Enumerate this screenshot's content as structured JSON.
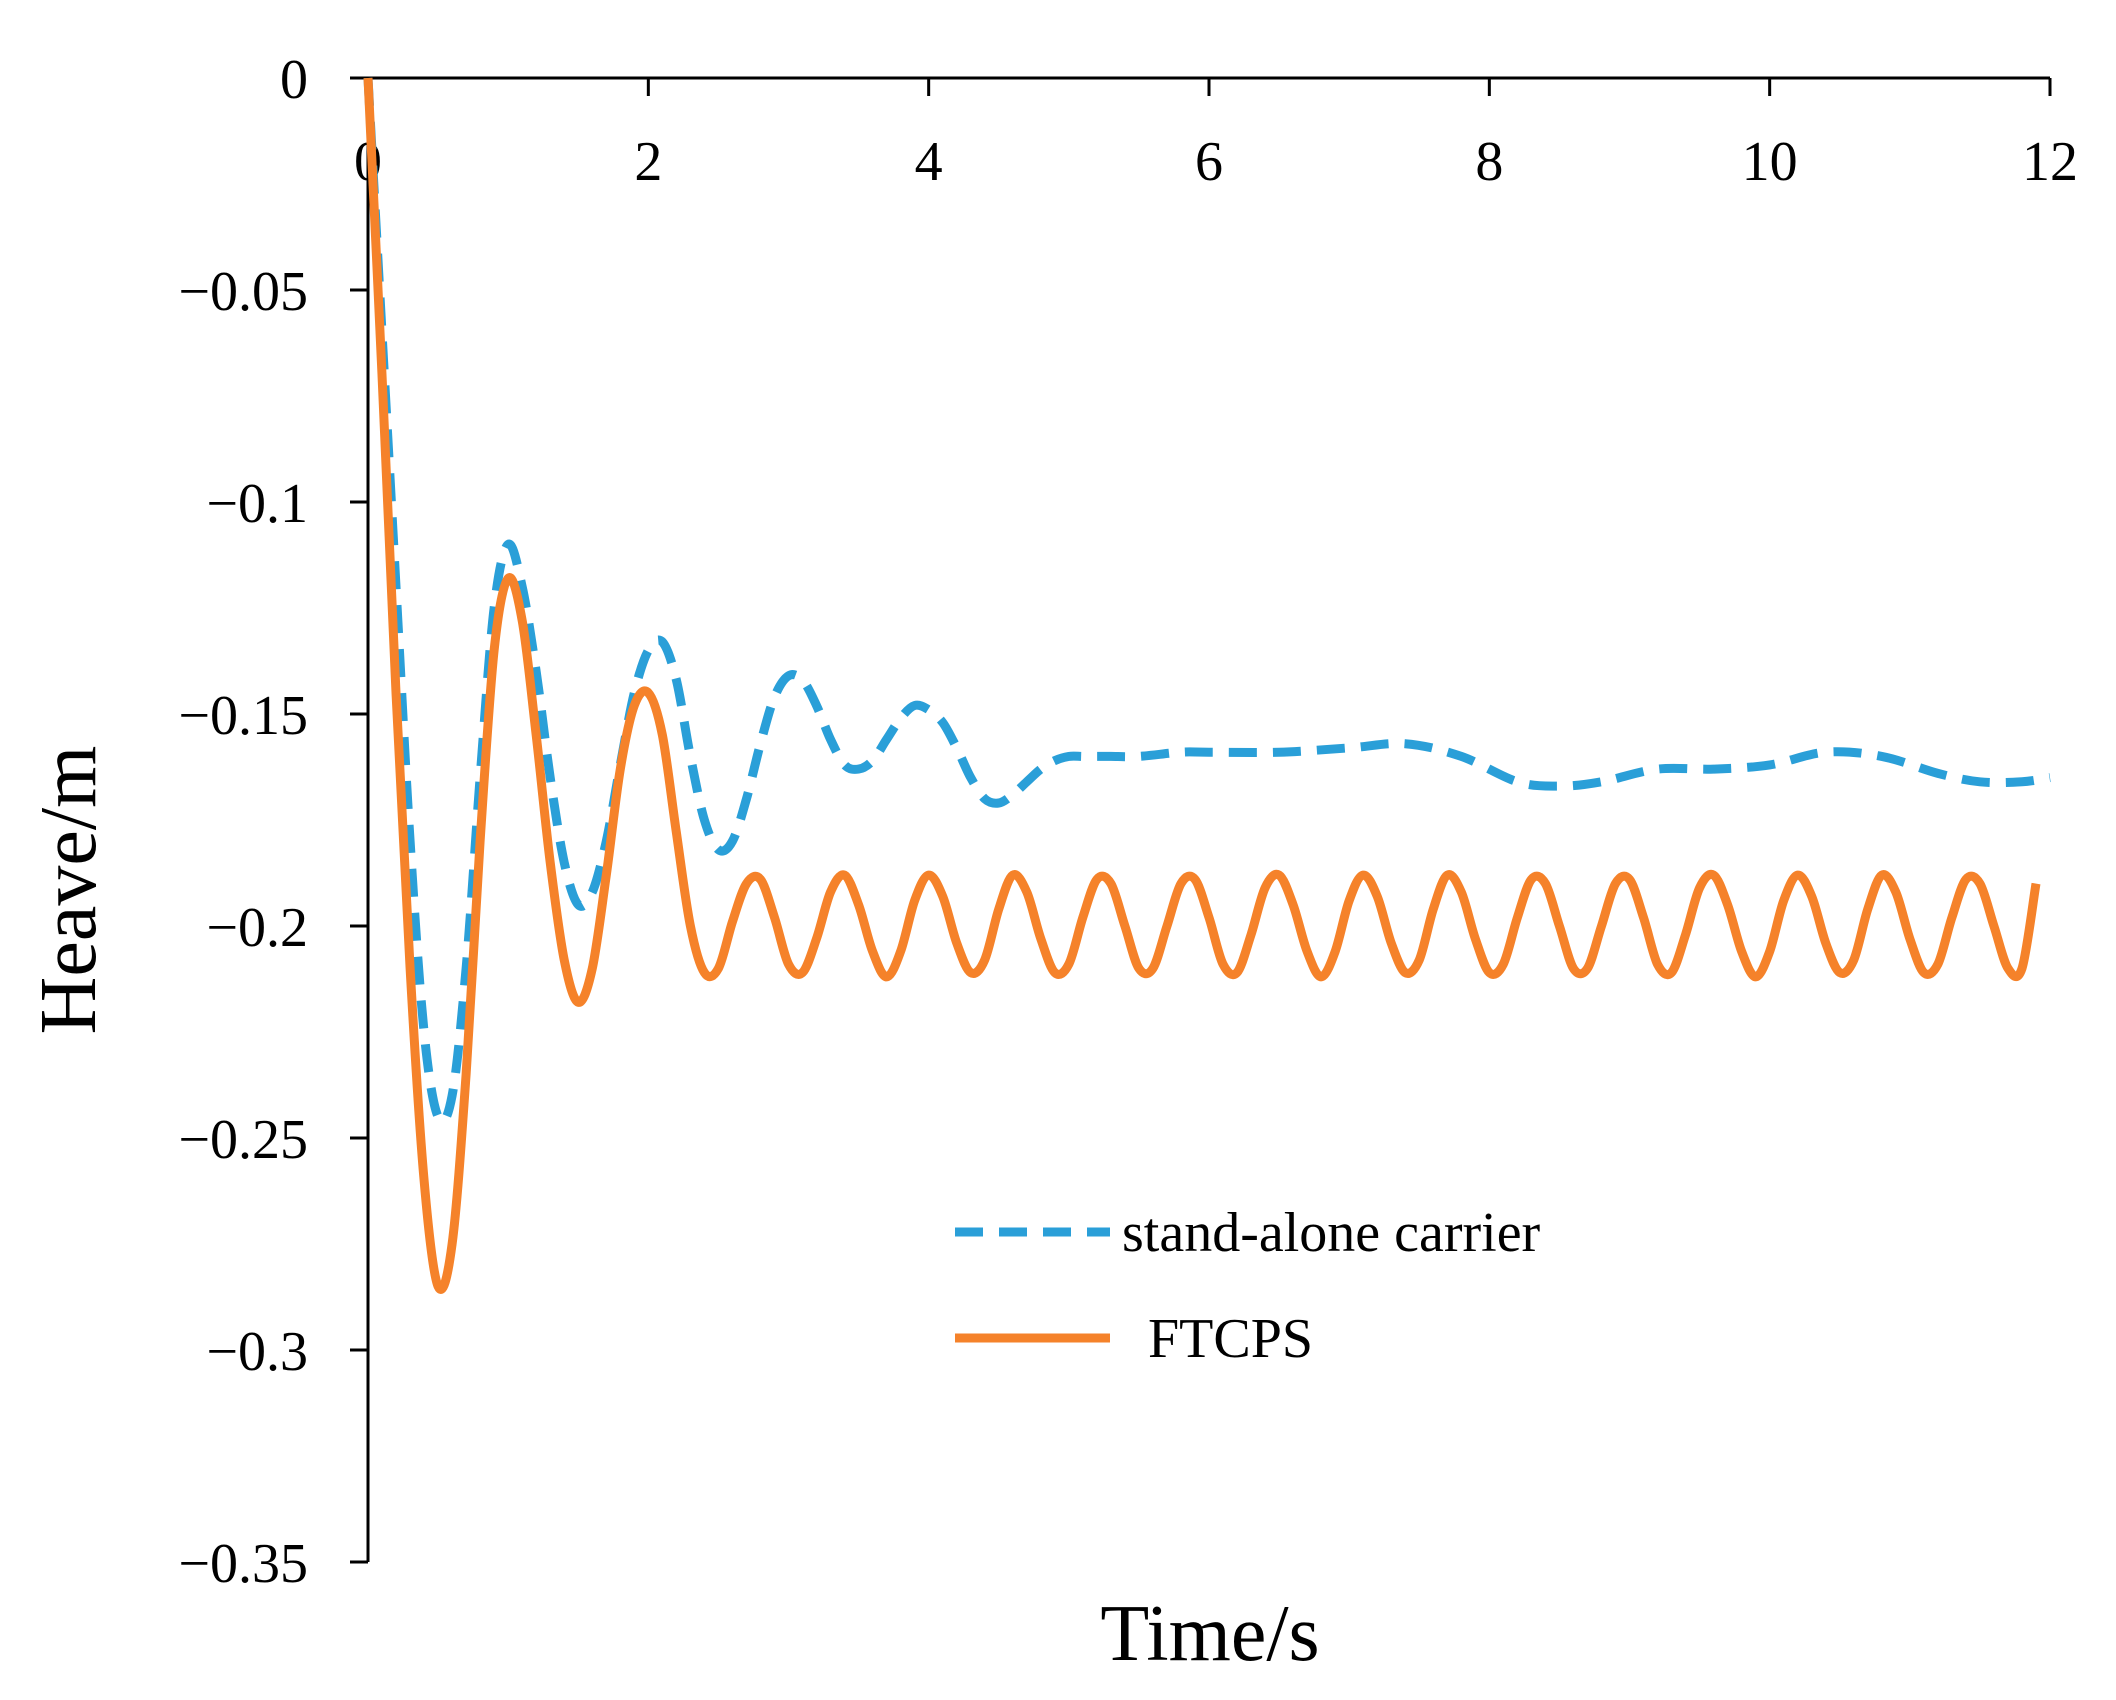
{
  "chart_data": {
    "type": "line",
    "title": "",
    "xlabel": "Time/s",
    "ylabel": "Heave/m",
    "xlim": [
      0,
      12
    ],
    "ylim": [
      -0.35,
      0
    ],
    "x_ticks": [
      0,
      2,
      4,
      6,
      8,
      10,
      12
    ],
    "x_tick_labels": [
      "0",
      "2",
      "4",
      "6",
      "8",
      "10",
      "12"
    ],
    "y_ticks": [
      0,
      -0.05,
      -0.1,
      -0.15,
      -0.2,
      -0.25,
      -0.3,
      -0.35
    ],
    "y_tick_labels": [
      "0",
      "−0.05",
      "−0.1",
      "−0.15",
      "−0.2",
      "−0.25",
      "−0.3",
      "−0.35"
    ],
    "x_axis_position": "top",
    "grid": false,
    "legend": {
      "position": "center-right"
    },
    "series": [
      {
        "name": "stand-alone carrier",
        "color": "#2a9fd8",
        "style": "dashed",
        "x": [
          0,
          0.1,
          0.2,
          0.3,
          0.4,
          0.5,
          0.6,
          0.7,
          0.8,
          0.9,
          1.0,
          1.1,
          1.2,
          1.3,
          1.4,
          1.5,
          1.6,
          1.7,
          1.8,
          1.9,
          2.0,
          2.1,
          2.2,
          2.3,
          2.4,
          2.5,
          2.6,
          2.7,
          2.8,
          2.9,
          3.0,
          3.1,
          3.2,
          3.3,
          3.4,
          3.5,
          3.6,
          3.7,
          3.8,
          3.9,
          4.0,
          4.1,
          4.2,
          4.3,
          4.4,
          4.5,
          4.6,
          4.7,
          4.8,
          4.9,
          5.0,
          5.1,
          5.2,
          5.3,
          5.5,
          5.8,
          6.0,
          6.5,
          7.0,
          7.4,
          7.8,
          8.2,
          8.5,
          8.8,
          9.2,
          9.6,
          10.0,
          10.4,
          10.8,
          11.2,
          11.5,
          11.8,
          12.0
        ],
        "values": [
          0,
          -0.06,
          -0.12,
          -0.18,
          -0.225,
          -0.245,
          -0.24,
          -0.21,
          -0.165,
          -0.125,
          -0.11,
          -0.12,
          -0.14,
          -0.165,
          -0.185,
          -0.195,
          -0.192,
          -0.18,
          -0.162,
          -0.145,
          -0.135,
          -0.133,
          -0.142,
          -0.16,
          -0.175,
          -0.182,
          -0.18,
          -0.17,
          -0.157,
          -0.146,
          -0.141,
          -0.142,
          -0.148,
          -0.156,
          -0.162,
          -0.163,
          -0.161,
          -0.156,
          -0.151,
          -0.148,
          -0.149,
          -0.152,
          -0.158,
          -0.165,
          -0.17,
          -0.171,
          -0.169,
          -0.166,
          -0.163,
          -0.161,
          -0.16,
          -0.16,
          -0.16,
          -0.16,
          -0.16,
          -0.159,
          -0.159,
          -0.159,
          -0.158,
          -0.157,
          -0.16,
          -0.166,
          -0.167,
          -0.166,
          -0.163,
          -0.163,
          -0.162,
          -0.159,
          -0.16,
          -0.164,
          -0.166,
          -0.166,
          -0.165
        ]
      },
      {
        "name": "FTCPS",
        "color": "#f5822a",
        "style": "solid",
        "x": [
          0,
          0.1,
          0.2,
          0.3,
          0.4,
          0.5,
          0.6,
          0.7,
          0.8,
          0.9,
          1.0,
          1.1,
          1.2,
          1.3,
          1.4,
          1.5,
          1.6,
          1.7,
          1.8,
          1.9,
          2.0,
          2.1,
          2.2,
          2.3,
          2.4,
          2.5,
          2.6,
          2.7,
          2.8,
          2.9,
          3.0,
          3.1,
          3.2,
          3.3,
          3.4,
          3.5,
          3.6,
          3.7,
          3.8,
          3.9,
          4.0,
          4.1,
          4.2,
          4.3,
          4.4,
          4.5,
          4.6,
          4.7,
          4.8,
          4.9,
          5.0,
          5.1,
          5.2,
          5.3,
          5.4,
          5.5,
          5.6,
          5.7,
          5.8,
          5.9,
          6.0,
          6.1,
          6.2,
          6.3,
          6.4,
          6.5,
          6.6,
          6.7,
          6.8,
          6.9,
          7.0,
          7.1,
          7.2,
          7.3,
          7.4,
          7.5,
          7.6,
          7.7,
          7.8,
          7.9,
          8.0,
          8.1,
          8.2,
          8.3,
          8.4,
          8.5,
          8.6,
          8.7,
          8.8,
          8.9,
          9.0,
          9.1,
          9.2,
          9.3,
          9.4,
          9.5,
          9.6,
          9.7,
          9.8,
          9.9,
          10.0,
          10.1,
          10.2,
          10.3,
          10.4,
          10.5,
          10.6,
          10.7,
          10.8,
          10.9,
          11.0,
          11.1,
          11.2,
          11.3,
          11.4,
          11.5,
          11.6,
          11.7,
          11.8,
          11.9
        ],
        "values": [
          0,
          -0.07,
          -0.145,
          -0.21,
          -0.26,
          -0.285,
          -0.275,
          -0.235,
          -0.18,
          -0.135,
          -0.118,
          -0.128,
          -0.155,
          -0.185,
          -0.208,
          -0.218,
          -0.21,
          -0.188,
          -0.163,
          -0.148,
          -0.145,
          -0.155,
          -0.178,
          -0.2,
          -0.211,
          -0.21,
          -0.199,
          -0.19,
          -0.189,
          -0.198,
          -0.209,
          -0.211,
          -0.203,
          -0.192,
          -0.188,
          -0.195,
          -0.206,
          -0.212,
          -0.206,
          -0.194,
          -0.188,
          -0.193,
          -0.204,
          -0.211,
          -0.208,
          -0.196,
          -0.188,
          -0.192,
          -0.203,
          -0.211,
          -0.209,
          -0.198,
          -0.189,
          -0.19,
          -0.2,
          -0.21,
          -0.21,
          -0.2,
          -0.19,
          -0.189,
          -0.198,
          -0.209,
          -0.211,
          -0.202,
          -0.191,
          -0.188,
          -0.195,
          -0.206,
          -0.212,
          -0.206,
          -0.194,
          -0.188,
          -0.193,
          -0.204,
          -0.211,
          -0.208,
          -0.196,
          -0.188,
          -0.192,
          -0.203,
          -0.211,
          -0.209,
          -0.198,
          -0.189,
          -0.19,
          -0.2,
          -0.21,
          -0.21,
          -0.2,
          -0.19,
          -0.189,
          -0.198,
          -0.209,
          -0.211,
          -0.202,
          -0.191,
          -0.188,
          -0.195,
          -0.206,
          -0.212,
          -0.206,
          -0.194,
          -0.188,
          -0.193,
          -0.204,
          -0.211,
          -0.208,
          -0.196,
          -0.188,
          -0.192,
          -0.203,
          -0.211,
          -0.209,
          -0.198,
          -0.189,
          -0.19,
          -0.2,
          -0.21,
          -0.21,
          -0.19
        ]
      }
    ]
  }
}
